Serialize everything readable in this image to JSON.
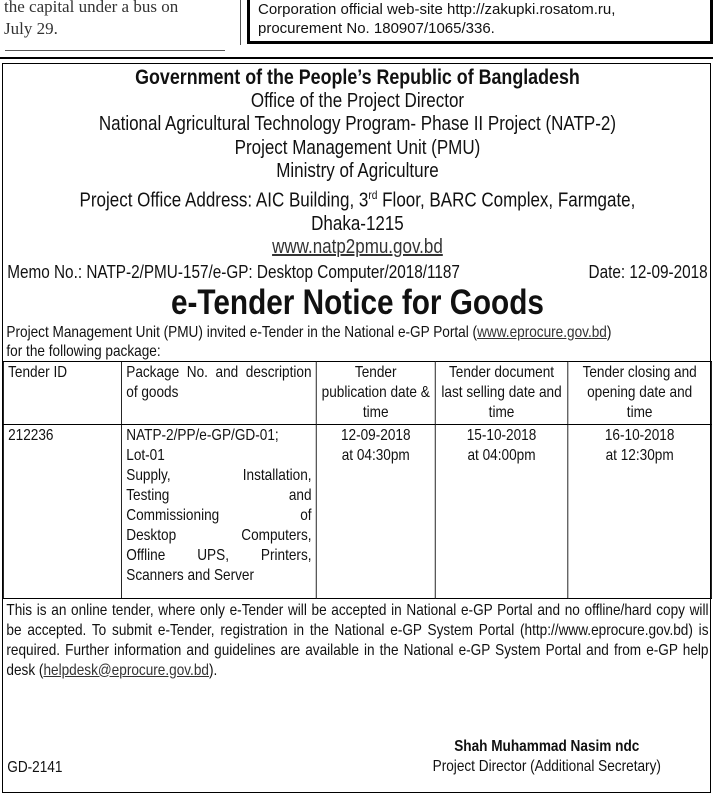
{
  "news_snippet": {
    "lines": [
      "the capital under a bus on",
      "July 29."
    ]
  },
  "ad_snippet": {
    "lines": [
      "Corporation official web-site http://zakupki.rosatom.ru,",
      "procurement No. 180907/1065/336."
    ]
  },
  "notice": {
    "header": [
      "Government of the People’s Republic of Bangladesh",
      "Office of the Project Director",
      "National Agricultural Technology Program- Phase II Project (NATP-2)",
      "Project Management Unit (PMU)",
      "Ministry of Agriculture"
    ],
    "address_pre": "Project Office Address: AIC Building, 3",
    "address_sup": "rd",
    "address_post": " Floor, BARC Complex, Farmgate,",
    "address_city": "Dhaka-1215",
    "website": "www.natp2pmu.gov.bd",
    "memo": "Memo No.: NATP-2/PMU-157/e-GP: Desktop Computer/2018/1187",
    "date": "Date: 12-09-2018",
    "title": "e-Tender Notice for Goods",
    "intro_pre": "Project Management Unit (PMU) invited e-Tender in the National e-GP Portal (",
    "intro_link": "www.eprocure.gov.bd",
    "intro_post": ")",
    "intro_line2": "for the following package:",
    "table": {
      "headers": [
        "Tender ID",
        "Package No. and description of goods",
        "Tender publication date & time",
        "Tender document last selling date and time",
        "Tender closing and opening date and time"
      ],
      "row": {
        "id": "212236",
        "package_lines": [
          "NATP-2/PP/e-GP/GD-01;",
          "Lot-01",
          "Supply, Installation,",
          "Testing and",
          "Commissioning of",
          "Desktop Computers,",
          "Offline UPS, Printers,",
          "Scanners and Server"
        ],
        "publication": [
          "12-09-2018",
          "at 04:30pm"
        ],
        "selling": [
          "15-10-2018",
          "at 04:00pm"
        ],
        "closing": [
          "16-10-2018",
          "at 12:30pm"
        ]
      }
    },
    "footer_pre": "This is an online tender, where only e-Tender will be accepted in National e-GP Portal and no offline/hard copy will be accepted. To submit e-Tender, registration in the National e-GP System Portal (http://www.eprocure.gov.bd) is required. Further information and guidelines are available in the National e-GP System Portal and from e-GP help desk (",
    "footer_link": "helpdesk@eprocure.gov.bd",
    "footer_post": ").",
    "signatory_name": "Shah Muhammad Nasim ndc",
    "signatory_title": "Project Director (Additional Secretary)",
    "code": "GD-2141"
  }
}
